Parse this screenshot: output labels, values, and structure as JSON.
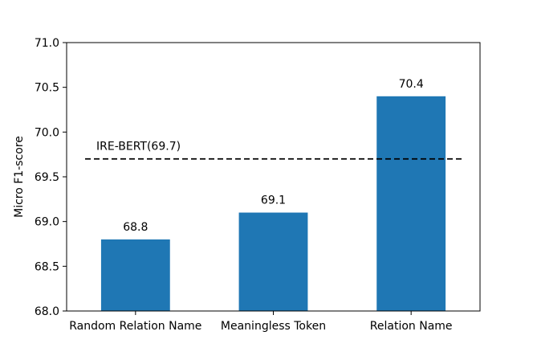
{
  "chart_data": {
    "type": "bar",
    "title": "",
    "xlabel": "",
    "ylabel": "Micro F1-score",
    "ylim": [
      68.0,
      71.0
    ],
    "yticks": [
      "68.0",
      "68.5",
      "69.0",
      "69.5",
      "70.0",
      "70.5",
      "71.0"
    ],
    "categories": [
      "Random Relation Name",
      "Meaningless Token",
      "Relation Name"
    ],
    "values": [
      68.8,
      69.1,
      70.4
    ],
    "data_labels": [
      "68.8",
      "69.1",
      "70.4"
    ],
    "bar_color": "#1f77b4",
    "grid": false,
    "legend": "none",
    "reference_line": {
      "value": 69.7,
      "label": "IRE-BERT(69.7)",
      "style": "dashed",
      "color": "#000000"
    }
  }
}
